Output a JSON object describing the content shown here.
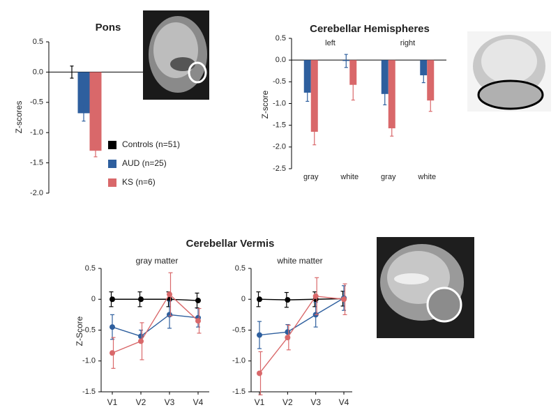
{
  "chart_data": [
    {
      "type": "bar",
      "title": "Pons",
      "ylabel": "Z-scores",
      "categories": [
        null
      ],
      "series": [
        {
          "name": "Controls (n=51)",
          "color": "#000000",
          "values": [
            0
          ],
          "errors": [
            0.1
          ]
        },
        {
          "name": "AUD (n=25)",
          "color": "#2e5f9e",
          "values": [
            -0.68
          ],
          "errors": [
            0.13
          ]
        },
        {
          "name": "KS (n=6)",
          "color": "#d9686a",
          "values": [
            -1.3
          ],
          "errors": [
            0.1
          ]
        }
      ],
      "ylim": [
        -2.0,
        0.5
      ],
      "yticks": [
        0.5,
        {
          "value": 0,
          "label": "0.0"
        },
        -0.5,
        {
          "value": -1,
          "label": "-1.0"
        },
        -1.5,
        {
          "value": -2,
          "label": "-2.0"
        }
      ],
      "legend": "lower right",
      "grid": false
    },
    {
      "type": "bar",
      "title": "Cerebellar Hemispheres",
      "ylabel": "Z-score",
      "categories": [
        "gray",
        "white",
        "gray",
        "white"
      ],
      "group_labels": [
        "left",
        "right"
      ],
      "series": [
        {
          "color": "#2e5f9e",
          "values": [
            -0.75,
            -0.02,
            -0.78,
            -0.35
          ],
          "errors": [
            0.2,
            0.15,
            0.25,
            0.17
          ]
        },
        {
          "color": "#d9686a",
          "values": [
            -1.65,
            -0.57,
            -1.57,
            -0.93
          ],
          "errors": [
            0.3,
            0.35,
            0.18,
            0.25
          ]
        }
      ],
      "ylim": [
        -2.5,
        0.5
      ],
      "yticks": [
        0.5,
        {
          "value": 0,
          "label": "0.0"
        },
        -0.5,
        {
          "value": -1,
          "label": "-1.0"
        },
        -1.5,
        {
          "value": -2,
          "label": "-2.0"
        },
        -2.5
      ],
      "grid": false
    },
    {
      "type": "line",
      "title": "Cerebellar Vermis",
      "subtitle": "gray matter",
      "ylabel": "Z-Score",
      "categories": [
        "V1",
        "V2",
        "V3",
        "V4"
      ],
      "series": [
        {
          "color": "#000000",
          "values": [
            0,
            0,
            0,
            -0.02
          ],
          "errors": [
            0.12,
            0.12,
            0.12,
            0.12
          ]
        },
        {
          "color": "#2e5f9e",
          "values": [
            -0.45,
            -0.6,
            -0.25,
            -0.3
          ],
          "errors": [
            0.2,
            0.1,
            0.22,
            0.15
          ]
        },
        {
          "color": "#d9686a",
          "values": [
            -0.87,
            -0.68,
            0.08,
            -0.35
          ],
          "errors": [
            0.25,
            0.3,
            0.35,
            0.2
          ]
        }
      ],
      "ylim": [
        -1.5,
        0.5
      ],
      "yticks": [
        0.5,
        0,
        -0.5,
        {
          "value": -1,
          "label": "-1.0"
        },
        -1.5
      ],
      "grid": false
    },
    {
      "type": "line",
      "subtitle": "white matter",
      "categories": [
        "V1",
        "V2",
        "V3",
        "V4"
      ],
      "series": [
        {
          "color": "#000000",
          "values": [
            0,
            -0.01,
            0,
            0.01
          ],
          "errors": [
            0.12,
            0.12,
            0.12,
            0.12
          ]
        },
        {
          "color": "#2e5f9e",
          "values": [
            -0.58,
            -0.53,
            -0.25,
            0.02
          ],
          "errors": [
            0.22,
            0.12,
            0.2,
            0.2
          ]
        },
        {
          "color": "#d9686a",
          "values": [
            -1.2,
            -0.62,
            0.05,
            0
          ],
          "errors": [
            0.35,
            0.2,
            0.3,
            0.25
          ]
        }
      ],
      "ylim": [
        -1.5,
        0.5
      ],
      "yticks": [
        0.5,
        0,
        -0.5,
        {
          "value": -1,
          "label": "-1.0"
        },
        -1.5
      ],
      "grid": false
    }
  ]
}
